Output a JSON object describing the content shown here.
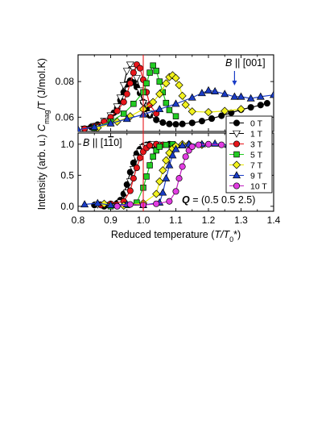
{
  "chart_data": [
    {
      "type": "scatter",
      "panel": "top",
      "xlim": [
        0.8,
        1.4
      ],
      "ylim": [
        0.052,
        0.095
      ],
      "ylabel": "C_mag/T (J/mol.K)",
      "ylabel_parts": {
        "main": "C",
        "sub": "mag",
        "rest": "/T (J/mol.K)"
      },
      "y_ticks": [
        0.06,
        0.08
      ],
      "y_tick_labels": [
        "0.06",
        "0.08"
      ],
      "annotation": {
        "text": "B || [001]",
        "parts": {
          "b": "B",
          "rest": " || [001]"
        }
      },
      "series": [
        {
          "name": "0 T",
          "x": [
            0.82,
            0.84,
            0.86,
            0.88,
            0.9,
            0.91,
            0.92,
            0.93,
            0.94,
            0.95,
            0.96,
            0.97,
            0.98,
            0.99,
            1.0,
            1.01,
            1.02,
            1.04,
            1.06,
            1.08,
            1.1,
            1.12,
            1.15,
            1.18,
            1.21,
            1.24,
            1.27,
            1.3,
            1.33,
            1.36,
            1.38
          ],
          "y": [
            0.0535,
            0.0545,
            0.0558,
            0.0575,
            0.06,
            0.0625,
            0.065,
            0.0695,
            0.074,
            0.0785,
            0.0805,
            0.0795,
            0.077,
            0.0735,
            0.0685,
            0.0645,
            0.061,
            0.0585,
            0.057,
            0.0562,
            0.056,
            0.0562,
            0.0568,
            0.0578,
            0.0592,
            0.0608,
            0.0625,
            0.0642,
            0.0655,
            0.0668,
            0.0678
          ]
        },
        {
          "name": "1 T",
          "x": [
            0.82,
            0.85,
            0.88,
            0.9,
            0.92,
            0.93,
            0.94,
            0.95,
            0.96,
            0.97,
            0.98,
            0.99,
            1.0,
            1.02
          ],
          "y": [
            0.0535,
            0.055,
            0.058,
            0.061,
            0.066,
            0.071,
            0.078,
            0.086,
            0.0895,
            0.087,
            0.082,
            0.075,
            0.068,
            0.062
          ]
        },
        {
          "name": "3 T",
          "x": [
            0.82,
            0.85,
            0.88,
            0.9,
            0.92,
            0.94,
            0.95,
            0.96,
            0.97,
            0.98,
            0.99,
            1.0,
            1.01,
            1.02,
            1.04
          ],
          "y": [
            0.0535,
            0.055,
            0.0575,
            0.06,
            0.0635,
            0.0685,
            0.073,
            0.079,
            0.085,
            0.0895,
            0.0875,
            0.081,
            0.074,
            0.067,
            0.062
          ]
        },
        {
          "name": "5 T",
          "x": [
            0.85,
            0.9,
            0.94,
            0.97,
            1.0,
            1.01,
            1.02,
            1.03,
            1.04,
            1.05,
            1.06,
            1.07,
            1.08,
            1.1
          ],
          "y": [
            0.054,
            0.0575,
            0.062,
            0.0675,
            0.074,
            0.079,
            0.085,
            0.089,
            0.086,
            0.08,
            0.074,
            0.068,
            0.064,
            0.0605
          ]
        },
        {
          "name": "7 T",
          "x": [
            0.86,
            0.92,
            0.96,
            1.0,
            1.03,
            1.05,
            1.07,
            1.08,
            1.09,
            1.1,
            1.11,
            1.12,
            1.13,
            1.15,
            1.2,
            1.25,
            1.3
          ],
          "y": [
            0.054,
            0.0575,
            0.0605,
            0.0645,
            0.0685,
            0.073,
            0.079,
            0.0825,
            0.0835,
            0.082,
            0.078,
            0.072,
            0.067,
            0.0632,
            0.0628,
            0.0635,
            0.0645
          ]
        },
        {
          "name": "9 T",
          "x": [
            0.8,
            0.85,
            0.9,
            0.95,
            1.0,
            1.05,
            1.1,
            1.15,
            1.18,
            1.2,
            1.22,
            1.25,
            1.28,
            1.3,
            1.33,
            1.36,
            1.4
          ],
          "y": [
            0.053,
            0.0545,
            0.0565,
            0.059,
            0.0615,
            0.0645,
            0.0675,
            0.071,
            0.0735,
            0.075,
            0.0745,
            0.073,
            0.0715,
            0.0715,
            0.0705,
            0.0715,
            0.0725
          ]
        }
      ]
    },
    {
      "type": "scatter",
      "panel": "bottom",
      "xlim": [
        0.8,
        1.4
      ],
      "ylim": [
        -0.08,
        1.18
      ],
      "ylabel": "Intensity (arb. u.)",
      "xlabel": "Reduced temperature (T/T0*)",
      "xlabel_parts": {
        "pre": "Reduced temperature (",
        "t": "T/T",
        "sub": "0",
        "post": "*)"
      },
      "x_ticks": [
        0.8,
        0.9,
        1.0,
        1.1,
        1.2,
        1.3,
        1.4
      ],
      "x_tick_labels": [
        "0.8",
        "0.9",
        "1.0",
        "1.1",
        "1.2",
        "1.3",
        "1.4"
      ],
      "y_ticks": [
        0.0,
        0.5,
        1.0
      ],
      "y_tick_labels": [
        "0.0",
        "0.5",
        "1.0"
      ],
      "annotation": {
        "text": "B || [1-10]",
        "parts": {
          "b": "B",
          "rest": " || [1",
          "bar": "1",
          "end": "0]"
        }
      },
      "q_annotation": {
        "text": "Q = (0.5 0.5 2.5)",
        "parts": {
          "q": "Q",
          "rest": " = (0.5 0.5 2.5)"
        }
      },
      "series": [
        {
          "name": "0 T",
          "x": [
            0.85,
            0.88,
            0.9,
            0.92,
            0.93,
            0.94,
            0.95,
            0.96,
            0.97,
            0.98,
            0.99,
            1.0,
            1.01,
            1.02,
            1.03,
            1.05,
            1.08
          ],
          "y": [
            0.02,
            0.0,
            0.03,
            0.05,
            0.1,
            0.2,
            0.35,
            0.55,
            0.7,
            0.85,
            0.92,
            0.97,
            0.99,
            1.0,
            0.98,
            0.99,
            1.0
          ]
        },
        {
          "name": "1 T",
          "x": [
            0.86,
            0.9,
            0.93,
            0.95,
            0.96,
            0.97,
            0.98,
            0.99,
            1.0,
            1.01,
            1.03,
            1.05
          ],
          "y": [
            0.03,
            0.02,
            0.06,
            0.22,
            0.4,
            0.6,
            0.78,
            0.88,
            0.95,
            0.98,
            1.0,
            0.99
          ]
        },
        {
          "name": "3 T",
          "x": [
            0.87,
            0.9,
            0.94,
            0.96,
            0.97,
            0.98,
            0.99,
            1.0,
            1.01,
            1.02,
            1.04,
            1.06
          ],
          "y": [
            0.02,
            0.04,
            0.08,
            0.25,
            0.45,
            0.62,
            0.78,
            0.88,
            0.94,
            0.98,
            1.0,
            0.99
          ]
        },
        {
          "name": "5 T",
          "x": [
            0.9,
            0.95,
            0.98,
            1.0,
            1.01,
            1.02,
            1.03,
            1.04,
            1.05,
            1.07,
            1.09
          ],
          "y": [
            0.0,
            0.02,
            0.06,
            0.3,
            0.48,
            0.66,
            0.8,
            0.9,
            0.96,
            0.99,
            1.0
          ]
        },
        {
          "name": "7 T",
          "x": [
            0.88,
            0.94,
            1.0,
            1.04,
            1.05,
            1.06,
            1.07,
            1.08,
            1.09,
            1.1,
            1.12,
            1.14,
            1.18
          ],
          "y": [
            0.04,
            0.01,
            0.05,
            0.2,
            0.4,
            0.58,
            0.74,
            0.86,
            0.93,
            0.97,
            1.0,
            1.0,
            0.99
          ]
        },
        {
          "name": "9 T",
          "x": [
            0.82,
            0.86,
            0.9,
            0.95,
            1.0,
            1.05,
            1.06,
            1.07,
            1.08,
            1.09,
            1.1,
            1.12,
            1.14,
            1.18,
            1.22,
            1.26
          ],
          "y": [
            0.03,
            0.05,
            0.02,
            0.03,
            0.02,
            0.06,
            0.22,
            0.45,
            0.66,
            0.82,
            0.92,
            0.98,
            1.0,
            1.0,
            1.01,
            0.99
          ]
        },
        {
          "name": "10 T",
          "x": [
            0.92,
            0.96,
            1.0,
            1.04,
            1.08,
            1.1,
            1.11,
            1.12,
            1.13,
            1.14,
            1.15,
            1.17,
            1.2,
            1.24
          ],
          "y": [
            0.0,
            0.03,
            0.02,
            0.04,
            0.08,
            0.24,
            0.45,
            0.64,
            0.8,
            0.9,
            0.96,
            0.99,
            1.0,
            0.99
          ]
        }
      ]
    }
  ],
  "legend": [
    "0 T",
    "1 T",
    "3 T",
    "5 T",
    "7 T",
    "9 T",
    "10 T"
  ],
  "styles": {
    "0 T": {
      "marker": "circle",
      "fill": "#000000",
      "line": "#000000"
    },
    "1 T": {
      "marker": "triangle-down",
      "fill": "#ffffff",
      "line": "#000000"
    },
    "3 T": {
      "marker": "circle",
      "fill": "#e8161b",
      "line": "#e8161b"
    },
    "5 T": {
      "marker": "square",
      "fill": "#22cc22",
      "line": "#22cc22"
    },
    "7 T": {
      "marker": "diamond",
      "fill": "#f2f21c",
      "line": "#e6e600"
    },
    "9 T": {
      "marker": "triangle-up",
      "fill": "#1a3cc6",
      "line": "#1a3cc6"
    },
    "10 T": {
      "marker": "circle",
      "fill": "#e23ce2",
      "line": "#c020c0"
    }
  },
  "reference_line": {
    "x": 1.0,
    "color": "#e8161b"
  }
}
